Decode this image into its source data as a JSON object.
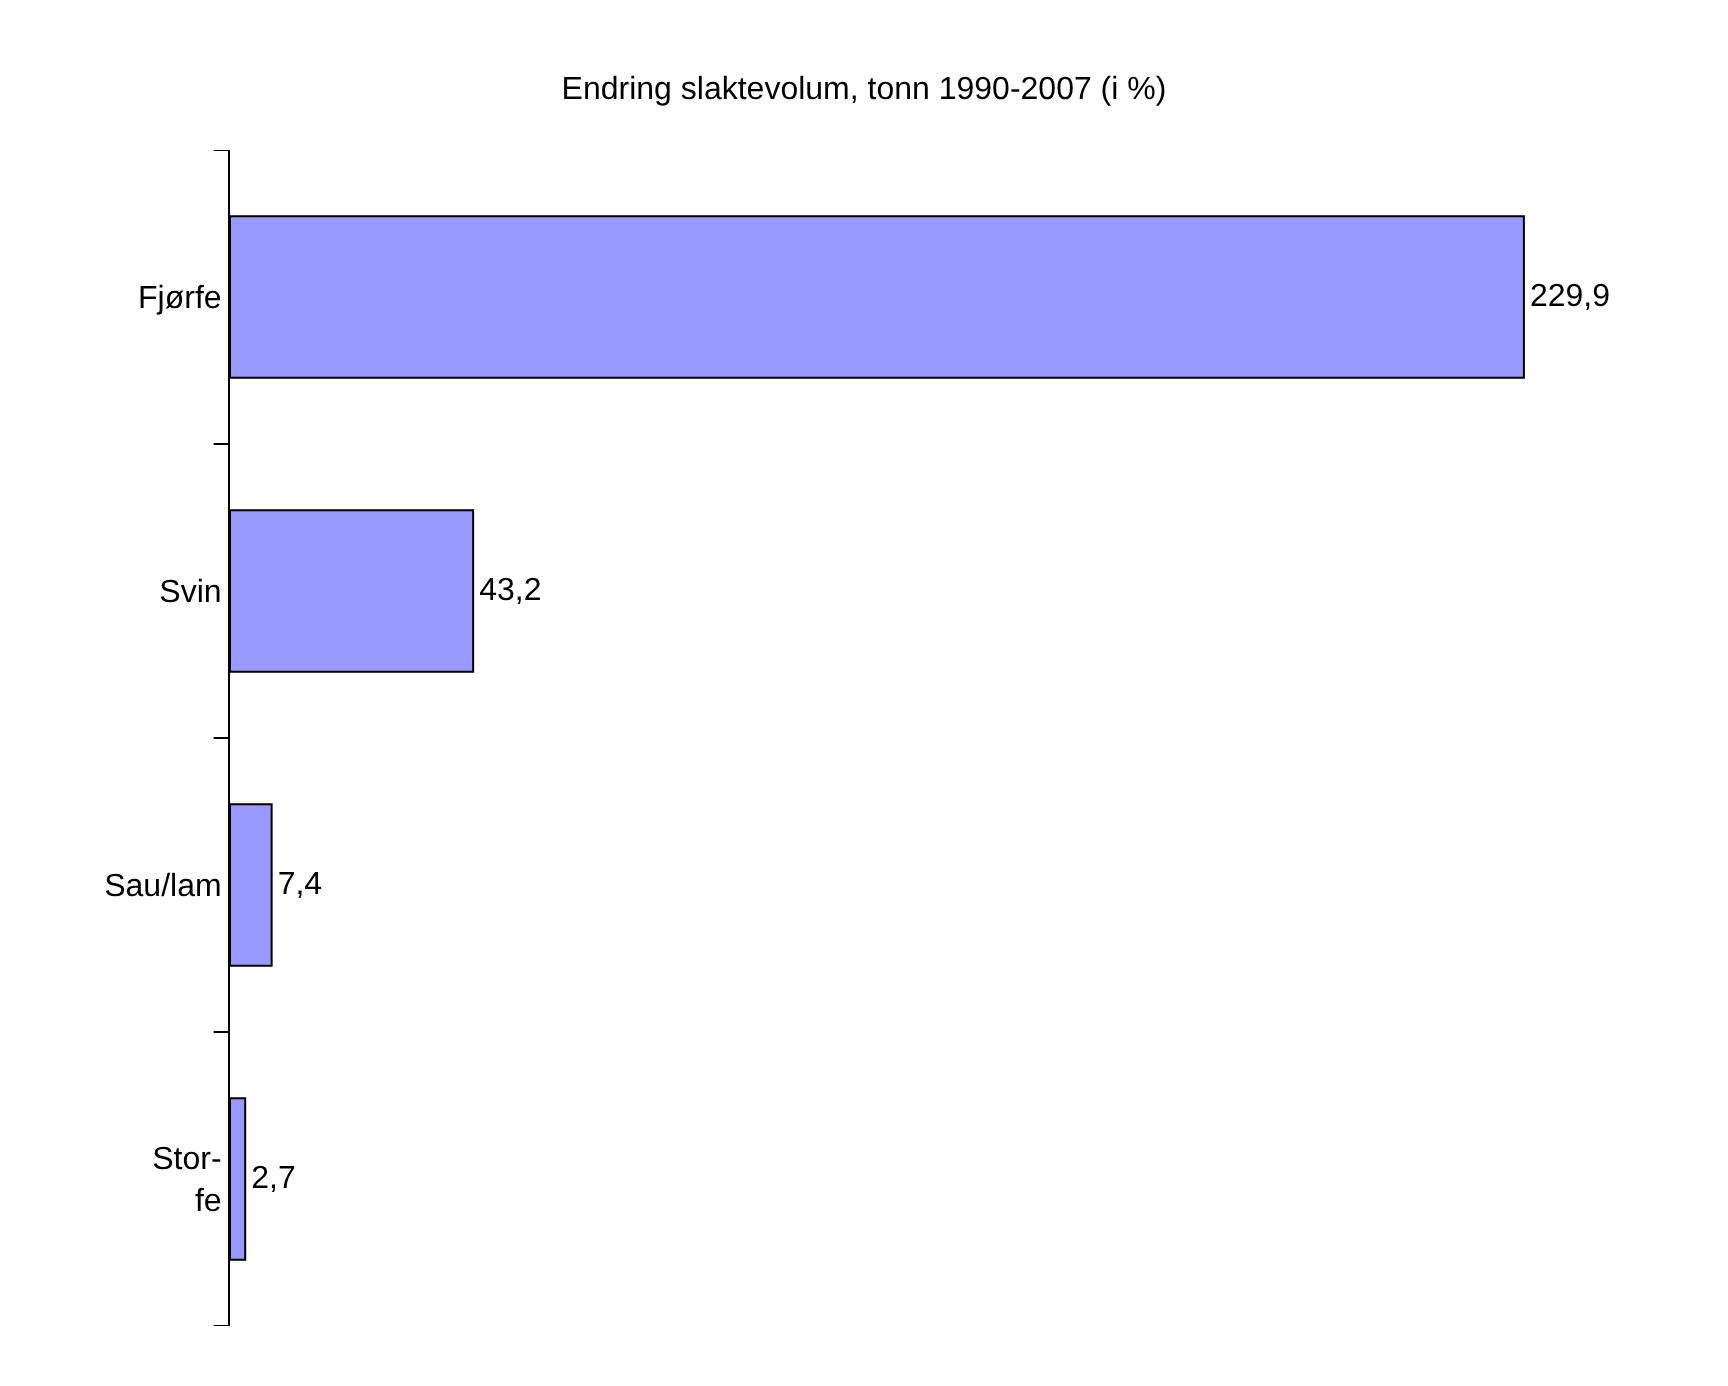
{
  "chart_data": {
    "type": "bar",
    "orientation": "horizontal",
    "title": "Endring slaktevolum, tonn 1990-2007 (i %)",
    "categories": [
      "Fjørfe",
      "Svin",
      "Sau/lam",
      "Stor-\nfe"
    ],
    "values": [
      229.9,
      43.2,
      7.4,
      2.7
    ],
    "value_labels": [
      "229,9",
      "43,2",
      "7,4",
      "2,7"
    ],
    "color": "#9999ff"
  }
}
